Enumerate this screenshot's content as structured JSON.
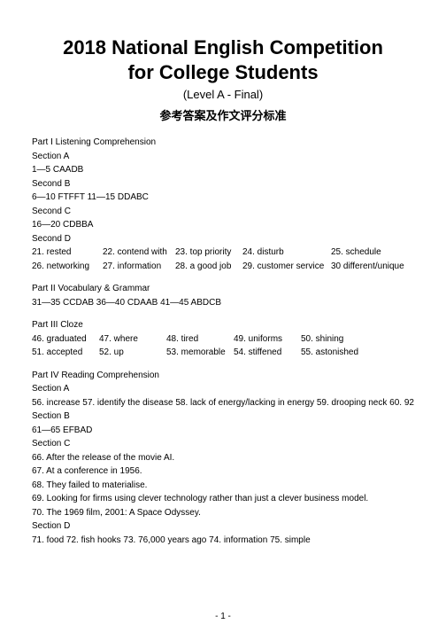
{
  "title_line1": "2018 National English Competition",
  "title_line2": "for College Students",
  "subtitle": "(Level A - Final)",
  "cn_title": "参考答案及作文评分标准",
  "part1": {
    "heading": "Part I Listening Comprehension",
    "secA_label": "Section A",
    "secA_ans": "1—5 CAADB",
    "secB_label": "Second B",
    "secB_ans": "6—10 FTFFT   11—15 DDABC",
    "secC_label": "Second C",
    "secC_ans": "16—20 CDBBA",
    "secD_label": "Second D",
    "row1": {
      "a": "21. rested",
      "b": "22. contend with",
      "c": "23. top priority",
      "d": "24. disturb",
      "e": "25. schedule"
    },
    "row2": {
      "a": "26. networking",
      "b": "27. information",
      "c": "28. a good job",
      "d": "29. customer service",
      "e": "30 different/unique"
    }
  },
  "part2": {
    "heading": "Part II Vocabulary & Grammar",
    "ans": "31—35 CCDAB   36—40 CDAAB   41—45 ABDCB"
  },
  "part3": {
    "heading": "Part III Cloze",
    "row1": {
      "a": "46. graduated",
      "b": "47. where",
      "c": "48. tired",
      "d": "49. uniforms",
      "e": "50. shining"
    },
    "row2": {
      "a": "51. accepted",
      "b": "52. up",
      "c": "53. memorable",
      "d": "54. stiffened",
      "e": "55. astonished"
    }
  },
  "part4": {
    "heading": "Part IV Reading Comprehension",
    "secA_label": "Section A",
    "secA_ans": "56. increase   57. identify the disease   58. lack of energy/lacking in energy   59. drooping neck   60. 92",
    "secB_label": "Section B",
    "secB_ans": "61—65 EFBAD",
    "secC_label": "Section C",
    "c66": "66. After the release of the movie AI.",
    "c67": "67. At a conference in 1956.",
    "c68": "68. They failed to materialise.",
    "c69": "69. Looking for firms using clever technology rather than just a clever business model.",
    "c70": "70. The 1969 film, 2001: A Space Odyssey.",
    "secD_label": "Section D",
    "secD_ans": "71. food   72. fish hooks   73. 76,000 years ago   74. information   75. simple"
  },
  "page_num": "- 1 -"
}
